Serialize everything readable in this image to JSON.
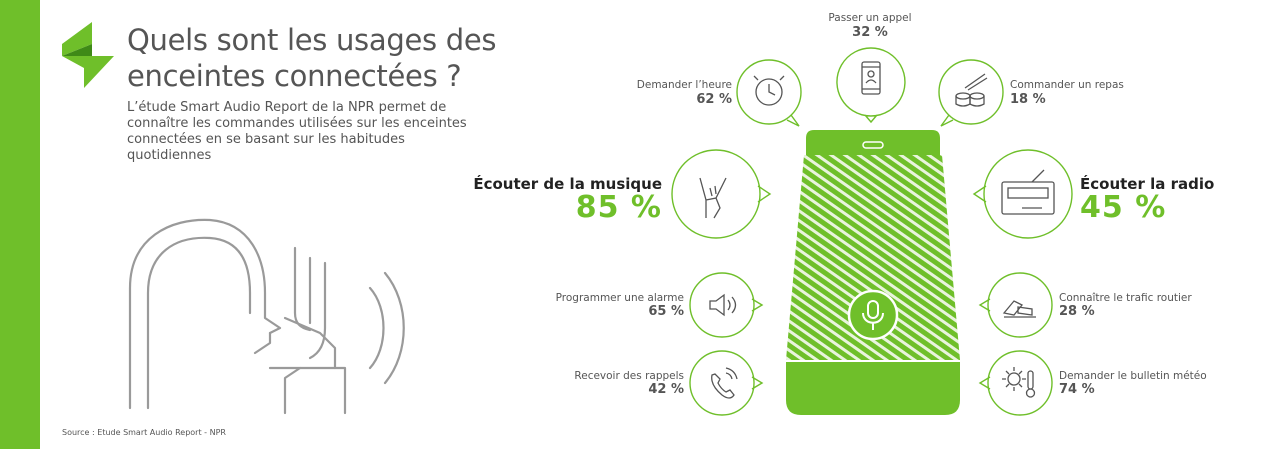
{
  "header": {
    "title_line1": "Quels sont les usages des",
    "title_line2": "enceintes connectées ?",
    "subtitle": "L’étude Smart Audio Report de la NPR permet de connaître les commandes utilisées sur les enceintes connectées en se basant sur les habitudes quotidiennes"
  },
  "source": "Source : Etude Smart Audio Report - NPR",
  "colors": {
    "accent": "#6fbf2a",
    "text": "#555555"
  },
  "usages": [
    {
      "label": "Passer un appel",
      "value": "32 %",
      "icon": "phone-contact-icon"
    },
    {
      "label": "Demander l’heure",
      "value": "62 %",
      "icon": "clock-icon"
    },
    {
      "label": "Commander un repas",
      "value": "18 %",
      "icon": "sushi-icon"
    },
    {
      "label": "Écouter de la musique",
      "value": "85 %",
      "icon": "rock-hand-icon"
    },
    {
      "label": "Écouter la radio",
      "value": "45 %",
      "icon": "radio-icon"
    },
    {
      "label": "Programmer une alarme",
      "value": "65 %",
      "icon": "speaker-sound-icon"
    },
    {
      "label": "Connaître le trafic routier",
      "value": "28 %",
      "icon": "car-crash-icon"
    },
    {
      "label": "Recevoir des rappels",
      "value": "42 %",
      "icon": "phone-ringing-icon"
    },
    {
      "label": "Demander le bulletin météo",
      "value": "74 %",
      "icon": "weather-icon"
    }
  ]
}
